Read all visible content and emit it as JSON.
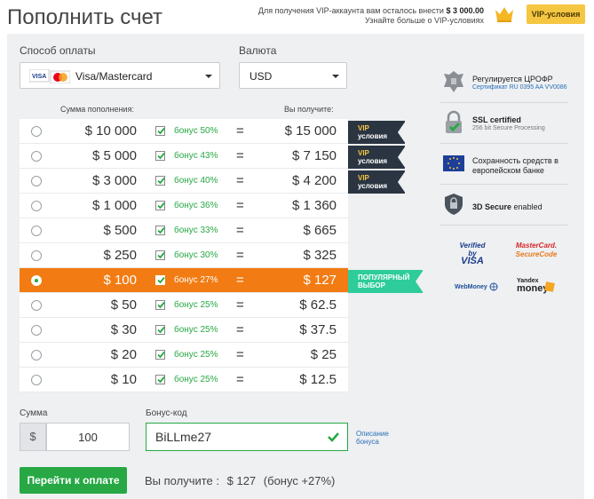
{
  "header": {
    "title": "Пополнить счет",
    "vip_note_line1": "Для получения VIP-аккаунта вам осталось внести",
    "vip_amount": "$ 3 000.00",
    "vip_note_line2": "Узнайте больше о VIP-условиях",
    "vip_button": "VIP-условия",
    "crown_icon": "crown-icon"
  },
  "form": {
    "method_label": "Способ оплаты",
    "method_value": "Visa/Mastercard",
    "currency_label": "Валюта",
    "currency_value": "USD"
  },
  "table": {
    "head_amount": "Сумма пополнения:",
    "head_receive": "Вы получите:",
    "rows": [
      {
        "amount": "$ 10 000",
        "bonus": "бонус 50%",
        "eq": "=",
        "receive": "$ 15 000",
        "selected": false
      },
      {
        "amount": "$ 5 000",
        "bonus": "бонус 43%",
        "eq": "=",
        "receive": "$ 7 150",
        "selected": false
      },
      {
        "amount": "$ 3 000",
        "bonus": "бонус 40%",
        "eq": "=",
        "receive": "$ 4 200",
        "selected": false
      },
      {
        "amount": "$ 1 000",
        "bonus": "бонус 36%",
        "eq": "=",
        "receive": "$ 1 360",
        "selected": false
      },
      {
        "amount": "$ 500",
        "bonus": "бонус 33%",
        "eq": "=",
        "receive": "$ 665",
        "selected": false
      },
      {
        "amount": "$ 250",
        "bonus": "бонус 30%",
        "eq": "=",
        "receive": "$ 325",
        "selected": false
      },
      {
        "amount": "$ 100",
        "bonus": "бонус 27%",
        "eq": "=",
        "receive": "$ 127",
        "selected": true
      },
      {
        "amount": "$ 50",
        "bonus": "бонус 25%",
        "eq": "=",
        "receive": "$ 62.5",
        "selected": false
      },
      {
        "amount": "$ 30",
        "bonus": "бонус 25%",
        "eq": "=",
        "receive": "$ 37.5",
        "selected": false
      },
      {
        "amount": "$ 20",
        "bonus": "бонус 25%",
        "eq": "=",
        "receive": "$ 25",
        "selected": false
      },
      {
        "amount": "$ 10",
        "bonus": "бонус 25%",
        "eq": "=",
        "receive": "$ 12.5",
        "selected": false
      }
    ],
    "ribbons": {
      "vip_top": "VIP",
      "vip_bottom": "условия",
      "popular_top": "ПОПУЛЯРНЫЙ",
      "popular_bottom": "ВЫБОР"
    }
  },
  "sidebar": {
    "item1_title": "Регулируется ЦРОФР",
    "item1_sub": "Сертификат RU 0395 AA VV0086",
    "item2_title": "SSL certified",
    "item2_sub": "256 bit Secure Processing",
    "item3_title": "Сохранность средств в европейском банке",
    "item4_title": "3D Secure",
    "item4_suffix": "enabled",
    "logo_visa_1": "Verified by",
    "logo_visa_2": "VISA",
    "logo_mc_1": "MasterCard.",
    "logo_mc_2": "SecureCode",
    "logo_webmoney": "WebMoney",
    "logo_yandex_1": "Yandex",
    "logo_yandex_2": "money"
  },
  "bottom": {
    "sum_label": "Сумма",
    "currency_symbol": "$",
    "sum_value": "100",
    "promo_label": "Бонус-код",
    "promo_value": "BiLLme27",
    "promo_link_1": "Описание",
    "promo_link_2": "бонуса",
    "pay_button": "Перейти к оплате",
    "total_label": "Вы получите :",
    "total_value": "$ 127",
    "total_bonus": "(бонус +27%)"
  },
  "colors": {
    "accent_green": "#27a844",
    "selected_orange": "#f27b13",
    "vip_gold": "#f5c642",
    "ribbon_dark": "#2b3542",
    "ribbon_popular": "#2ecc9a"
  }
}
